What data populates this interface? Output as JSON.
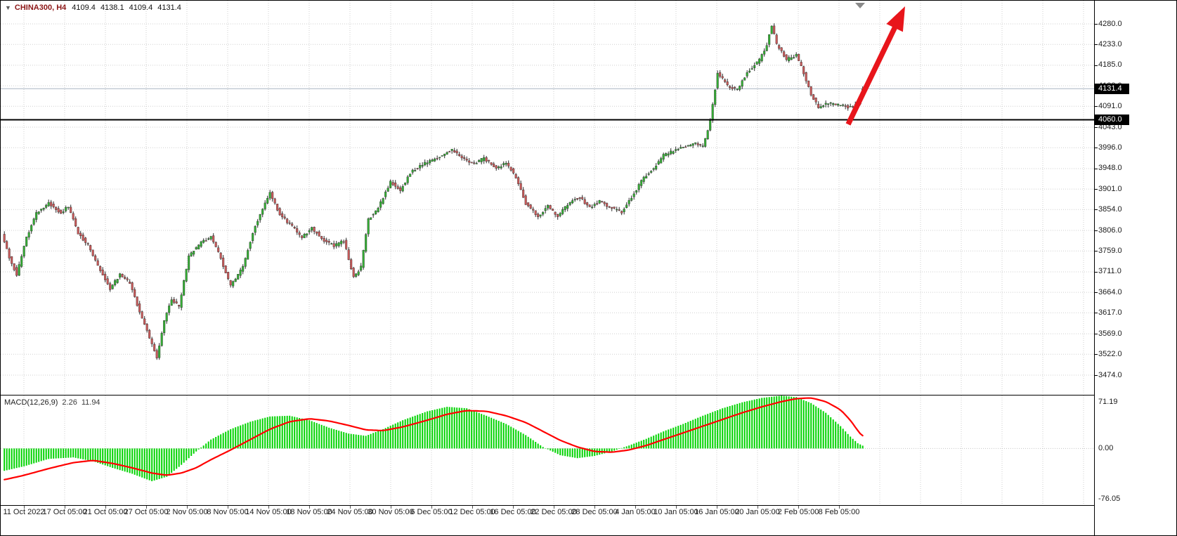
{
  "header": {
    "symbol": "CHINA300, H4",
    "quote_open": "4109.4",
    "quote_high": "4138.1",
    "quote_low": "4109.4",
    "quote_close": "4131.4"
  },
  "price_axis": {
    "ticks": [
      "4280.0",
      "4233.0",
      "4185.0",
      "4138.0",
      "4091.0",
      "4043.0",
      "3996.0",
      "3948.0",
      "3901.0",
      "3854.0",
      "3806.0",
      "3759.0",
      "3711.0",
      "3664.0",
      "3617.0",
      "3569.0",
      "3522.0",
      "3474.0"
    ],
    "current_price_badge": "4131.4",
    "hline_badge": "4060.0"
  },
  "time_axis": {
    "labels": [
      "11 Oct 2022",
      "17 Oct 05:00",
      "21 Oct 05:00",
      "27 Oct 05:00",
      "2 Nov 05:00",
      "8 Nov 05:00",
      "14 Nov 05:00",
      "18 Nov 05:00",
      "24 Nov 05:00",
      "30 Nov 05:00",
      "6 Dec 05:00",
      "12 Dec 05:00",
      "16 Dec 05:00",
      "22 Dec 05:00",
      "28 Dec 05:00",
      "4 Jan 05:00",
      "10 Jan 05:00",
      "16 Jan 05:00",
      "20 Jan 05:00",
      "2 Feb 05:00",
      "8 Feb 05:00"
    ]
  },
  "macd_panel": {
    "label": "MACD(12,26,9)",
    "macd_value": "2.26",
    "signal_value": "11.94",
    "axis_top": "71.19",
    "axis_zero": "0.00",
    "axis_bottom": "-76.05"
  },
  "chart_data": {
    "type": "candlestick",
    "symbol": "CHINA300",
    "timeframe": "H4",
    "bars": 350,
    "price_axis_range": [
      3474.0,
      4280.0
    ],
    "last_bar": {
      "open": 4109.4,
      "high": 4138.1,
      "low": 4109.4,
      "close": 4131.4
    },
    "current_price": 4131.4,
    "horizontal_line_price": 4060.0,
    "trend_waypoints": [
      [
        0,
        3795
      ],
      [
        3,
        3745
      ],
      [
        6,
        3705
      ],
      [
        10,
        3790
      ],
      [
        14,
        3845
      ],
      [
        19,
        3870
      ],
      [
        24,
        3845
      ],
      [
        27,
        3862
      ],
      [
        31,
        3800
      ],
      [
        35,
        3772
      ],
      [
        39,
        3725
      ],
      [
        44,
        3672
      ],
      [
        48,
        3705
      ],
      [
        52,
        3685
      ],
      [
        56,
        3620
      ],
      [
        61,
        3545
      ],
      [
        63,
        3512
      ],
      [
        66,
        3600
      ],
      [
        69,
        3648
      ],
      [
        72,
        3630
      ],
      [
        76,
        3748
      ],
      [
        81,
        3778
      ],
      [
        85,
        3792
      ],
      [
        89,
        3742
      ],
      [
        93,
        3678
      ],
      [
        98,
        3722
      ],
      [
        102,
        3802
      ],
      [
        106,
        3858
      ],
      [
        109,
        3892
      ],
      [
        113,
        3842
      ],
      [
        118,
        3815
      ],
      [
        122,
        3790
      ],
      [
        126,
        3812
      ],
      [
        131,
        3782
      ],
      [
        135,
        3770
      ],
      [
        139,
        3782
      ],
      [
        143,
        3698
      ],
      [
        146,
        3722
      ],
      [
        149,
        3832
      ],
      [
        153,
        3858
      ],
      [
        158,
        3918
      ],
      [
        162,
        3898
      ],
      [
        166,
        3938
      ],
      [
        171,
        3958
      ],
      [
        175,
        3968
      ],
      [
        179,
        3978
      ],
      [
        183,
        3992
      ],
      [
        188,
        3968
      ],
      [
        192,
        3958
      ],
      [
        196,
        3972
      ],
      [
        201,
        3948
      ],
      [
        205,
        3962
      ],
      [
        209,
        3928
      ],
      [
        213,
        3868
      ],
      [
        218,
        3838
      ],
      [
        222,
        3862
      ],
      [
        226,
        3838
      ],
      [
        231,
        3872
      ],
      [
        235,
        3882
      ],
      [
        239,
        3858
      ],
      [
        243,
        3872
      ],
      [
        248,
        3858
      ],
      [
        252,
        3848
      ],
      [
        256,
        3882
      ],
      [
        261,
        3928
      ],
      [
        265,
        3948
      ],
      [
        269,
        3978
      ],
      [
        273,
        3988
      ],
      [
        278,
        3998
      ],
      [
        282,
        4008
      ],
      [
        285,
        3998
      ],
      [
        288,
        4058
      ],
      [
        291,
        4168
      ],
      [
        295,
        4138
      ],
      [
        299,
        4128
      ],
      [
        303,
        4168
      ],
      [
        308,
        4198
      ],
      [
        311,
        4232
      ],
      [
        313,
        4278
      ],
      [
        315,
        4232
      ],
      [
        319,
        4198
      ],
      [
        323,
        4208
      ],
      [
        326,
        4168
      ],
      [
        329,
        4118
      ],
      [
        332,
        4088
      ],
      [
        336,
        4098
      ],
      [
        340,
        4094
      ],
      [
        345,
        4088
      ],
      [
        348,
        4098
      ],
      [
        350,
        4131.4
      ]
    ],
    "macd": {
      "type": "histogram+signal-line",
      "range": [
        -76.05,
        71.19
      ],
      "waypoints": [
        [
          0,
          -30,
          -42
        ],
        [
          8,
          -24,
          -36
        ],
        [
          18,
          -14,
          -27
        ],
        [
          28,
          -12,
          -19
        ],
        [
          36,
          -17,
          -16
        ],
        [
          44,
          -26,
          -20
        ],
        [
          52,
          -34,
          -26
        ],
        [
          60,
          -44,
          -33
        ],
        [
          66,
          -38,
          -36
        ],
        [
          72,
          -22,
          -33
        ],
        [
          78,
          -4,
          -26
        ],
        [
          84,
          12,
          -15
        ],
        [
          92,
          26,
          -2
        ],
        [
          100,
          36,
          12
        ],
        [
          108,
          43,
          26
        ],
        [
          116,
          44,
          36
        ],
        [
          124,
          38,
          40
        ],
        [
          132,
          28,
          37
        ],
        [
          140,
          20,
          31
        ],
        [
          147,
          17,
          25
        ],
        [
          154,
          26,
          24
        ],
        [
          162,
          38,
          29
        ],
        [
          172,
          50,
          38
        ],
        [
          180,
          56,
          46
        ],
        [
          188,
          54,
          51
        ],
        [
          196,
          44,
          50
        ],
        [
          204,
          33,
          44
        ],
        [
          212,
          18,
          35
        ],
        [
          219,
          2,
          23
        ],
        [
          226,
          -9,
          11
        ],
        [
          233,
          -13,
          2
        ],
        [
          240,
          -10,
          -4
        ],
        [
          247,
          -4,
          -5
        ],
        [
          254,
          4,
          -2
        ],
        [
          261,
          13,
          4
        ],
        [
          268,
          23,
          12
        ],
        [
          276,
          33,
          21
        ],
        [
          284,
          44,
          30
        ],
        [
          292,
          54,
          39
        ],
        [
          300,
          62,
          48
        ],
        [
          308,
          68,
          56
        ],
        [
          316,
          71,
          63
        ],
        [
          322,
          69,
          67
        ],
        [
          328,
          61,
          68
        ],
        [
          334,
          48,
          63
        ],
        [
          340,
          30,
          52
        ],
        [
          344,
          16,
          38
        ],
        [
          347,
          7,
          24
        ],
        [
          350,
          2.26,
          11.94
        ]
      ]
    },
    "annotations": [
      {
        "kind": "horizontal-line",
        "price": 4060.0,
        "color": "#000000"
      },
      {
        "kind": "arrow",
        "direction": "up-right",
        "meaning": "bullish-projection",
        "color": "#e8151b"
      },
      {
        "kind": "current-price-line",
        "price": 4131.4,
        "color": "#a9b6c2"
      }
    ],
    "colors": {
      "bull": "#35b135",
      "bear": "#cd5b5b",
      "wick": "#2b2b2b",
      "macd_histogram": "#00d300",
      "macd_signal": "#ff0000",
      "grid": "#cfcfcf",
      "hline": "#000000",
      "arrow": "#e8151b",
      "current_price_line": "#a9b6c2",
      "badge_bg": "#000000",
      "badge_fg": "#ffffff"
    }
  }
}
